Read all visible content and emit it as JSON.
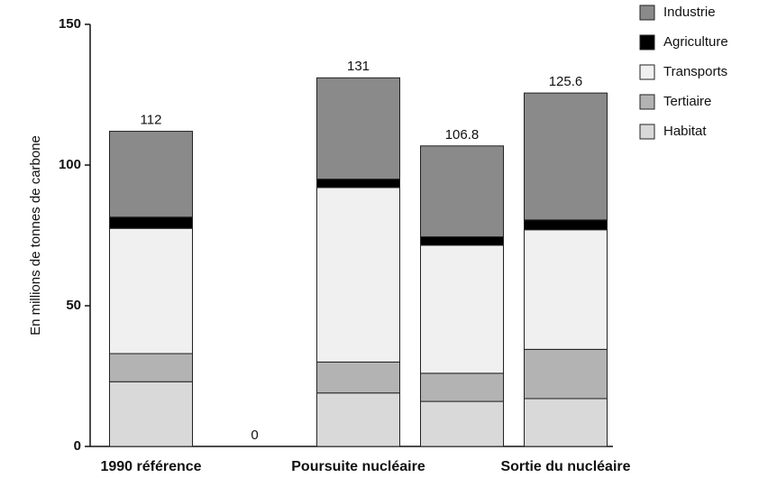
{
  "chart_data": {
    "type": "stacked_bar",
    "ylabel": "En millions de tonnes de carbone",
    "categories": [
      "1990 référence",
      null,
      "Poursuite nucléaire",
      null,
      "Sortie du nucléaire"
    ],
    "series": [
      {
        "name": "Habitat",
        "color": "#d9d9d9",
        "values": [
          23,
          0,
          19,
          16,
          17
        ]
      },
      {
        "name": "Tertiaire",
        "color": "#b3b3b3",
        "values": [
          10,
          0,
          11,
          10,
          17.5
        ]
      },
      {
        "name": "Transports",
        "color": "#f0f0f0",
        "values": [
          44.5,
          0,
          62,
          45.5,
          42.5
        ]
      },
      {
        "name": "Agriculture",
        "color": "#000000",
        "values": [
          4,
          0,
          3,
          3,
          3.5
        ]
      },
      {
        "name": "Industrie",
        "color": "#8a8a8a",
        "values": [
          30.5,
          0,
          36,
          32.3,
          45.1
        ]
      }
    ],
    "totals": [
      112,
      0,
      131,
      106.8,
      125.6
    ],
    "ylim": [
      0,
      150
    ],
    "yticks": [
      0,
      50,
      100,
      150
    ],
    "legend": "right"
  }
}
